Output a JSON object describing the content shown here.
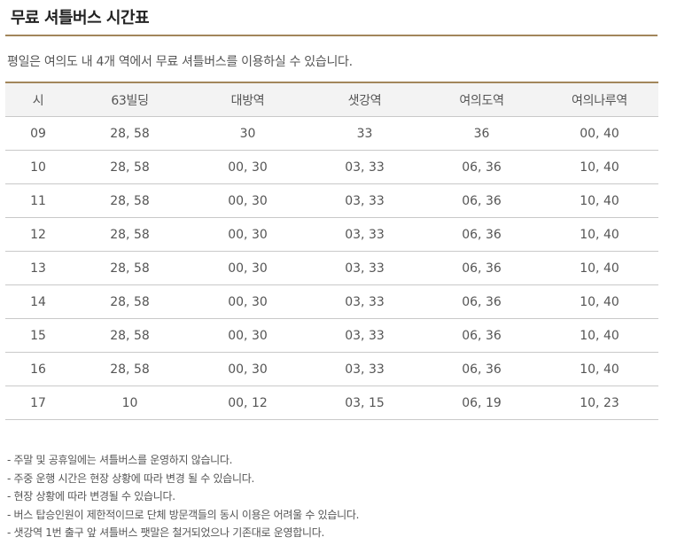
{
  "page": {
    "title": "무료 셔틀버스 시간표",
    "subtitle": "평일은 여의도 내 4개 역에서 무료 셔틀버스를 이용하실 수 있습니다."
  },
  "colors": {
    "accent_rule": "#a2865b",
    "header_bg": "#f3f3f3",
    "divider": "#c9c9c9",
    "text": "#555555"
  },
  "timetable": {
    "headers": [
      "시",
      "63빌딩",
      "대방역",
      "샛강역",
      "여의도역",
      "여의나루역"
    ],
    "rows": [
      [
        "09",
        "28, 58",
        "30",
        "33",
        "36",
        "00, 40"
      ],
      [
        "10",
        "28, 58",
        "00, 30",
        "03, 33",
        "06, 36",
        "10, 40"
      ],
      [
        "11",
        "28, 58",
        "00, 30",
        "03, 33",
        "06, 36",
        "10, 40"
      ],
      [
        "12",
        "28, 58",
        "00, 30",
        "03, 33",
        "06, 36",
        "10, 40"
      ],
      [
        "13",
        "28, 58",
        "00, 30",
        "03, 33",
        "06, 36",
        "10, 40"
      ],
      [
        "14",
        "28, 58",
        "00, 30",
        "03, 33",
        "06, 36",
        "10, 40"
      ],
      [
        "15",
        "28, 58",
        "00, 30",
        "03, 33",
        "06, 36",
        "10, 40"
      ],
      [
        "16",
        "28, 58",
        "00, 30",
        "03, 33",
        "06, 36",
        "10, 40"
      ],
      [
        "17",
        "10",
        "00, 12",
        "03, 15",
        "06, 19",
        "10, 23"
      ]
    ]
  },
  "notes": [
    "- 주말 및 공휴일에는 셔틀버스를 운영하지 않습니다.",
    "- 주중 운행 시간은 현장 상황에 따라 변경 될 수 있습니다.",
    "- 현장 상황에 따라 변경될 수 있습니다.",
    "- 버스 탑승인원이 제한적이므로 단체 방문객들의 동시 이용은 어려울 수 있습니다.",
    "- 샛강역 1번 출구 앞 셔틀버스 팻말은 철거되었으나 기존대로 운영합니다."
  ]
}
